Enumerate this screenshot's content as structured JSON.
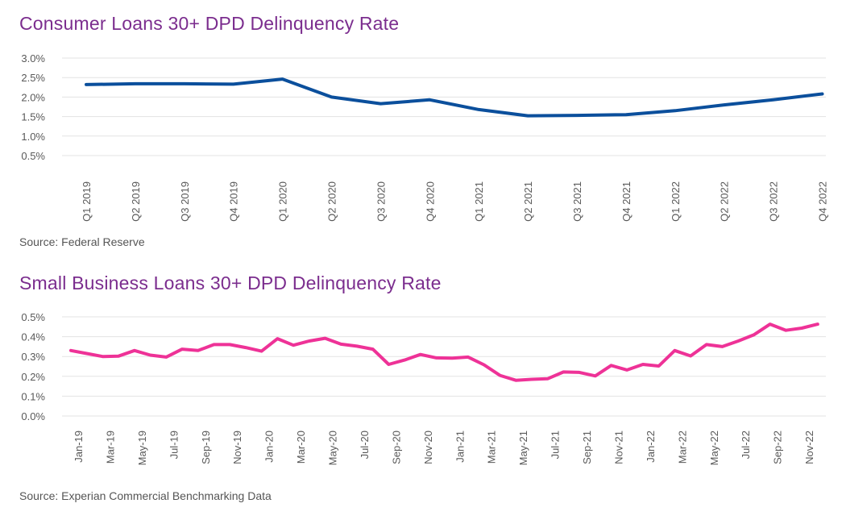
{
  "chart_data": [
    {
      "type": "line",
      "title": "Consumer Loans 30+ DPD Delinquency Rate",
      "source": "Source: Federal Reserve",
      "categories": [
        "Q1 2019",
        "Q2 2019",
        "Q3 2019",
        "Q4 2019",
        "Q1 2020",
        "Q2 2020",
        "Q3 2020",
        "Q4 2020",
        "Q1 2021",
        "Q2 2021",
        "Q3 2021",
        "Q4 2021",
        "Q1 2022",
        "Q2 2022",
        "Q3 2022",
        "Q4 2022"
      ],
      "values": [
        2.32,
        2.34,
        2.34,
        2.33,
        2.46,
        2.0,
        1.83,
        1.93,
        1.68,
        1.52,
        1.53,
        1.55,
        1.65,
        1.8,
        1.93,
        2.08
      ],
      "yticks": [
        "0.5%",
        "1.0%",
        "1.5%",
        "2.0%",
        "2.5%",
        "3.0%"
      ],
      "ylim": [
        0.5,
        3.0
      ],
      "unit": "%",
      "grid": true,
      "color": "#0B4F9C"
    },
    {
      "type": "line",
      "title": "Small Business Loans 30+ DPD Delinquency Rate",
      "source": "Source: Experian Commercial Benchmarking Data",
      "categories": [
        "Jan-19",
        "Feb-19",
        "Mar-19",
        "Apr-19",
        "May-19",
        "Jun-19",
        "Jul-19",
        "Aug-19",
        "Sep-19",
        "Oct-19",
        "Nov-19",
        "Dec-19",
        "Jan-20",
        "Feb-20",
        "Mar-20",
        "Apr-20",
        "May-20",
        "Jun-20",
        "Jul-20",
        "Aug-20",
        "Sep-20",
        "Oct-20",
        "Nov-20",
        "Dec-20",
        "Jan-21",
        "Feb-21",
        "Mar-21",
        "Apr-21",
        "May-21",
        "Jun-21",
        "Jul-21",
        "Aug-21",
        "Sep-21",
        "Oct-21",
        "Nov-21",
        "Dec-21",
        "Jan-22",
        "Feb-22",
        "Mar-22",
        "Apr-22",
        "May-22",
        "Jun-22",
        "Jul-22",
        "Aug-22",
        "Sep-22",
        "Oct-22",
        "Nov-22",
        "Dec-22"
      ],
      "tick_labels": [
        "Jan-19",
        "Mar-19",
        "May-19",
        "Jul-19",
        "Sep-19",
        "Nov-19",
        "Jan-20",
        "Mar-20",
        "May-20",
        "Jul-20",
        "Sep-20",
        "Nov-20",
        "Jan-21",
        "Mar-21",
        "May-21",
        "Jul-21",
        "Sep-21",
        "Nov-21",
        "Jan-22",
        "Mar-22",
        "May-22",
        "Jul-22",
        "Sep-22",
        "Nov-22"
      ],
      "values": [
        0.33,
        0.315,
        0.3,
        0.302,
        0.33,
        0.307,
        0.297,
        0.337,
        0.33,
        0.36,
        0.36,
        0.345,
        0.327,
        0.39,
        0.357,
        0.378,
        0.392,
        0.362,
        0.352,
        0.337,
        0.26,
        0.282,
        0.31,
        0.293,
        0.292,
        0.297,
        0.258,
        0.205,
        0.18,
        0.185,
        0.188,
        0.222,
        0.22,
        0.202,
        0.255,
        0.232,
        0.26,
        0.252,
        0.33,
        0.303,
        0.36,
        0.35,
        0.378,
        0.41,
        0.463,
        0.432,
        0.443,
        0.463
      ],
      "yticks": [
        "0.0%",
        "0.1%",
        "0.2%",
        "0.3%",
        "0.4%",
        "0.5%"
      ],
      "ylim": [
        0.0,
        0.5
      ],
      "unit": "%",
      "grid": true,
      "color": "#EE3297"
    }
  ]
}
